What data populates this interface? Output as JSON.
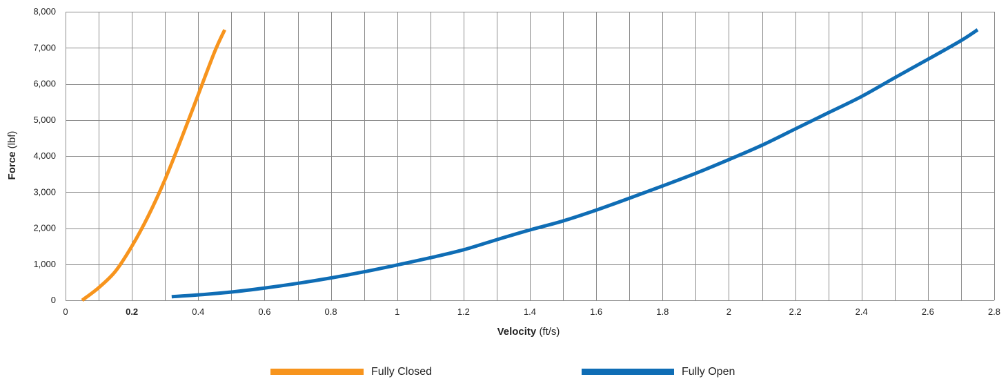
{
  "chart_data": {
    "type": "line",
    "title": "",
    "xlabel": {
      "bold": "Velocity",
      "unit": "(ft/s)"
    },
    "ylabel": {
      "bold": "Force",
      "unit": "(lbf)"
    },
    "xlim": [
      0,
      2.8
    ],
    "ylim": [
      0,
      8000
    ],
    "x_ticks": [
      0,
      0.2,
      0.4,
      0.6,
      0.8,
      1,
      1.2,
      1.4,
      1.6,
      1.8,
      2,
      2.2,
      2.4,
      2.6,
      2.8
    ],
    "x_tick_labels": [
      "0",
      "0.2",
      "0.4",
      "0.6",
      "0.8",
      "1",
      "1.2",
      "1.4",
      "1.6",
      "1.8",
      "2",
      "2.2",
      "2.4",
      "2.6",
      "2.8"
    ],
    "x_grid_step": 0.1,
    "y_ticks": [
      0,
      1000,
      2000,
      3000,
      4000,
      5000,
      6000,
      7000,
      8000
    ],
    "y_tick_labels": [
      "0",
      "1,000",
      "2,000",
      "3,000",
      "4,000",
      "5,000",
      "6,000",
      "7,000",
      "8,000"
    ],
    "grid": true,
    "legend_position": "bottom",
    "series": [
      {
        "name": "Fully Closed",
        "color": "#F7941D",
        "x": [
          0.05,
          0.1,
          0.15,
          0.2,
          0.25,
          0.3,
          0.35,
          0.4,
          0.45,
          0.48
        ],
        "y": [
          0,
          350,
          800,
          1500,
          2350,
          3350,
          4500,
          5700,
          6900,
          7500
        ]
      },
      {
        "name": "Fully Open",
        "color": "#0F6DB5",
        "x": [
          0.32,
          0.4,
          0.5,
          0.6,
          0.7,
          0.8,
          0.9,
          1.0,
          1.1,
          1.2,
          1.3,
          1.4,
          1.5,
          1.6,
          1.7,
          1.8,
          1.9,
          2.0,
          2.1,
          2.2,
          2.3,
          2.4,
          2.5,
          2.6,
          2.7,
          2.75
        ],
        "y": [
          100,
          150,
          230,
          340,
          470,
          620,
          790,
          980,
          1180,
          1400,
          1680,
          1950,
          2200,
          2500,
          2830,
          3170,
          3520,
          3900,
          4300,
          4750,
          5200,
          5650,
          6170,
          6680,
          7200,
          7500
        ]
      }
    ]
  }
}
